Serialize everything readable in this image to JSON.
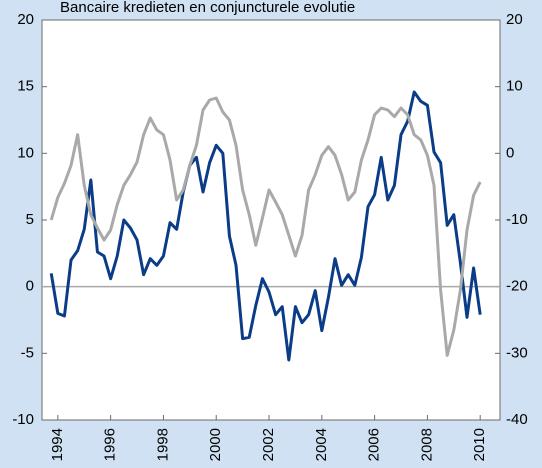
{
  "chart_data": {
    "type": "line",
    "title": "Bancaire kredieten en conjuncturele evolutie",
    "x": [
      1993.75,
      1994.0,
      1994.25,
      1994.5,
      1994.75,
      1995.0,
      1995.25,
      1995.5,
      1995.75,
      1996.0,
      1996.25,
      1996.5,
      1996.75,
      1997.0,
      1997.25,
      1997.5,
      1997.75,
      1998.0,
      1998.25,
      1998.5,
      1998.75,
      1999.0,
      1999.25,
      1999.5,
      1999.75,
      2000.0,
      2000.25,
      2000.5,
      2000.75,
      2001.0,
      2001.25,
      2001.5,
      2001.75,
      2002.0,
      2002.25,
      2002.5,
      2002.75,
      2003.0,
      2003.25,
      2003.5,
      2003.75,
      2004.0,
      2004.25,
      2004.5,
      2004.75,
      2005.0,
      2005.25,
      2005.5,
      2005.75,
      2006.0,
      2006.25,
      2006.5,
      2006.75,
      2007.0,
      2007.25,
      2007.5,
      2007.75,
      2008.0,
      2008.25,
      2008.5,
      2008.75,
      2009.0,
      2009.25,
      2009.5,
      2009.75,
      2010.0
    ],
    "series": [
      {
        "color": "#0b3c87",
        "axis": "y",
        "values": [
          1,
          -2,
          -2.2,
          2,
          2.7,
          4.3,
          8,
          2.6,
          2.3,
          0.6,
          2.3,
          5,
          4.4,
          3.5,
          0.9,
          2.1,
          1.6,
          2.3,
          4.8,
          4.3,
          7.1,
          9.1,
          9.7,
          7.1,
          9.3,
          10.6,
          10,
          3.8,
          1.6,
          -3.9,
          -3.8,
          -1.4,
          0.6,
          -0.4,
          -2.1,
          -1.5,
          -5.5,
          -1.5,
          -2.7,
          -2.1,
          -0.3,
          -3.3,
          -0.8,
          2.1,
          0.1,
          0.9,
          0.1,
          2.2,
          6,
          6.9,
          9.7,
          6.5,
          7.6,
          11.4,
          12.4,
          14.6,
          13.9,
          13.6,
          10.1,
          9.3,
          4.6,
          5.4,
          1.8,
          -2.3,
          1.4,
          -2.1
        ]
      },
      {
        "color": "#a9a9a9",
        "axis": "y2",
        "values": [
          -10,
          -6.6,
          -4.5,
          -1.8,
          2.8,
          -4.8,
          -9.2,
          -11.2,
          -13,
          -11.5,
          -7.7,
          -4.8,
          -3.2,
          -1.3,
          2.8,
          5.3,
          3.5,
          2.8,
          -1,
          -7,
          -5.5,
          -1.8,
          1.2,
          6.5,
          8,
          8.3,
          6.2,
          5,
          1.2,
          -5.5,
          -9.2,
          -13.8,
          -9.7,
          -5.5,
          -7.3,
          -9.2,
          -12.3,
          -15.4,
          -12.3,
          -5.5,
          -3.2,
          -0.3,
          1,
          -0.3,
          -3.2,
          -7,
          -5.8,
          -1,
          2,
          5.8,
          6.8,
          6.5,
          5.5,
          6.8,
          5.8,
          2.8,
          2,
          -0.3,
          -4.8,
          -20.5,
          -30.3,
          -26.5,
          -20.5,
          -11.5,
          -6.3,
          -4.3
        ]
      }
    ],
    "xlim": [
      1993.4,
      2010.75
    ],
    "xticks": [
      1994,
      1996,
      1998,
      2000,
      2002,
      2004,
      2006,
      2008,
      2010
    ],
    "ylim": [
      -10,
      20
    ],
    "yticks": [
      -10,
      -5,
      0,
      5,
      10,
      15,
      20
    ],
    "y2lim": [
      -40,
      20
    ],
    "y2ticks": [
      -40,
      -30,
      -20,
      -10,
      0,
      10,
      20
    ],
    "zero_line": true
  }
}
